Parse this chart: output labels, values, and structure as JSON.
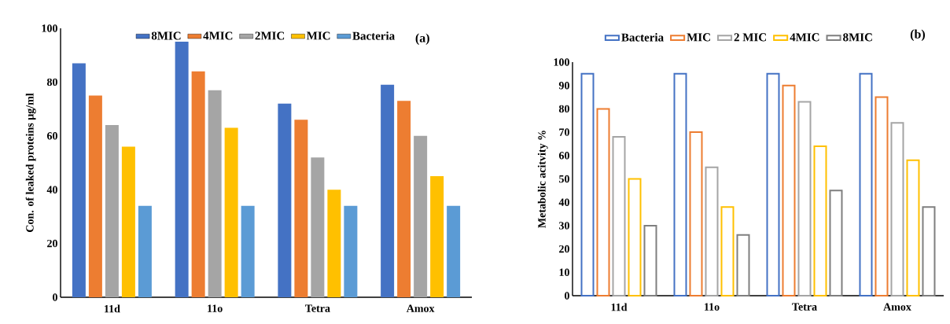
{
  "chart_data": [
    {
      "type": "bar",
      "ylabel": "Con. of leaked proteins µg/ml",
      "categories": [
        "11d",
        "11o",
        "Tetra",
        "Amox"
      ],
      "ylim": [
        0,
        100
      ],
      "yticks": [
        0,
        20,
        40,
        60,
        80,
        100
      ],
      "legend": "top",
      "annotations": [
        "(a)"
      ],
      "series": [
        {
          "name": "8MIC",
          "color": "#4472c4",
          "values": [
            87,
            95,
            72,
            79
          ]
        },
        {
          "name": "4MIC",
          "color": "#ed7d31",
          "values": [
            75,
            84,
            66,
            73
          ]
        },
        {
          "name": "2MIC",
          "color": "#a5a5a5",
          "values": [
            64,
            77,
            52,
            60
          ]
        },
        {
          "name": "MIC",
          "color": "#ffc000",
          "values": [
            56,
            63,
            40,
            45
          ]
        },
        {
          "name": "Bacteria",
          "color": "#5b9bd5",
          "values": [
            34,
            34,
            34,
            34
          ]
        }
      ]
    },
    {
      "type": "bar",
      "ylabel": "Metabolic acitvity %",
      "categories": [
        "11d",
        "11o",
        "Tetra",
        "Amox"
      ],
      "ylim": [
        0,
        100
      ],
      "yticks": [
        0,
        10,
        20,
        30,
        40,
        50,
        60,
        70,
        80,
        90,
        100
      ],
      "legend": "top",
      "annotations": [
        "(b)"
      ],
      "series": [
        {
          "name": "Bacteria",
          "color": "#4472c4",
          "values": [
            95,
            95,
            95,
            95
          ]
        },
        {
          "name": "MIC",
          "color": "#ed7d31",
          "values": [
            80,
            70,
            90,
            85
          ]
        },
        {
          "name": "2 MIC",
          "color": "#a5a5a5",
          "values": [
            68,
            55,
            83,
            74
          ]
        },
        {
          "name": "4MIC",
          "color": "#ffc000",
          "values": [
            50,
            38,
            64,
            58
          ]
        },
        {
          "name": "8MIC",
          "color": "#7f7f7f",
          "values": [
            30,
            26,
            45,
            38
          ]
        }
      ]
    }
  ]
}
